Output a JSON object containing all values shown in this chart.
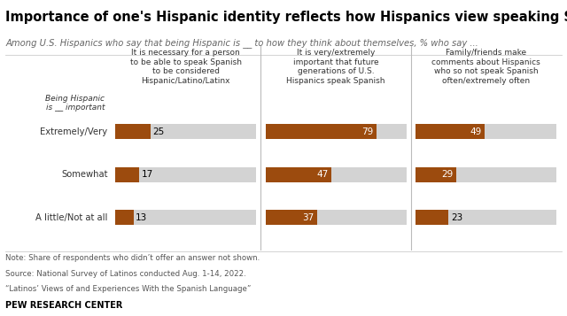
{
  "title": "Importance of one's Hispanic identity reflects how Hispanics view speaking Spanish",
  "subtitle": "Among U.S. Hispanics who say that being Hispanic is __ to how they think about themselves, % who say ...",
  "y_labels": [
    "Extremely/Very",
    "Somewhat",
    "A little/Not at all"
  ],
  "col_headers": [
    "It is necessary for a person\nto be able to speak Spanish\nto be considered\nHispanic/Latino/Latinx",
    "It is very/extremely\nimportant that future\ngenerations of U.S.\nHispanics speak Spanish",
    "Family/friends make\ncomments about Hispanics\nwho so not speak Spanish\noften/extremely often"
  ],
  "values": [
    [
      25,
      79,
      49
    ],
    [
      17,
      47,
      29
    ],
    [
      13,
      37,
      23
    ]
  ],
  "bar_color": "#9C4B0E",
  "bg_color": "#D3D3D3",
  "note_lines": [
    "Note: Share of respondents who didn’t offer an answer not shown.",
    "Source: National Survey of Latinos conducted Aug. 1-14, 2022.",
    "“Latinos’ Views of and Experiences With the Spanish Language”"
  ],
  "footer": "PEW RESEARCH CENTER",
  "y_axis_label": "Being Hispanic\nis __ important",
  "background": "#FFFFFF",
  "separator_color": "#BBBBBB",
  "title_color": "#000000",
  "subtitle_color": "#666666",
  "note_color": "#555555",
  "label_color": "#333333"
}
